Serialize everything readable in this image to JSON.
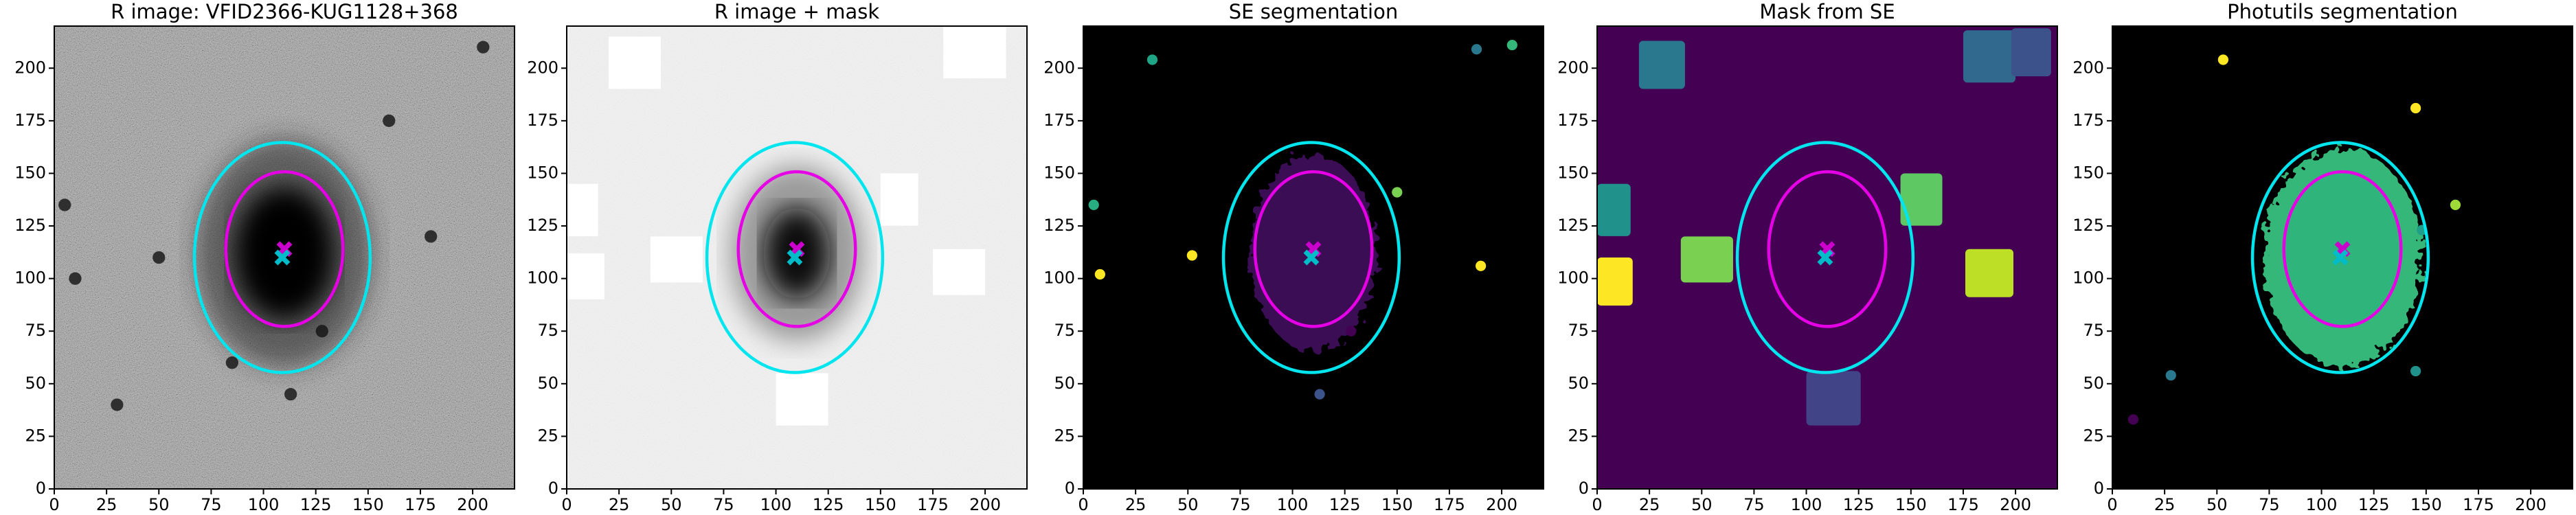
{
  "chart_data": [
    {
      "type": "image",
      "title": "R image: VFID2366-KUG1128+368",
      "background": "#8a8a8a",
      "xlim": [
        0,
        220
      ],
      "ylim": [
        0,
        220
      ],
      "xticks": [
        0,
        25,
        50,
        75,
        100,
        125,
        150,
        175,
        200
      ],
      "yticks": [
        0,
        25,
        50,
        75,
        100,
        125,
        150,
        175,
        200
      ],
      "ellipses": [
        {
          "color": "#00e5ee",
          "cx": 109,
          "cy": 110,
          "rx": 42,
          "ry": 55
        },
        {
          "color": "#e600e6",
          "cx": 110,
          "cy": 114,
          "rx": 28,
          "ry": 37
        }
      ],
      "markers": [
        {
          "color": "#cc00cc",
          "x": 110,
          "y": 114
        },
        {
          "color": "#00bcc8",
          "x": 109,
          "y": 110
        }
      ]
    },
    {
      "type": "image",
      "title": "R image + mask",
      "background": "#f2f2f2",
      "xlim": [
        0,
        220
      ],
      "ylim": [
        0,
        220
      ],
      "xticks": [
        0,
        25,
        50,
        75,
        100,
        125,
        150,
        175,
        200
      ],
      "yticks": [
        0,
        25,
        50,
        75,
        100,
        125,
        150,
        175,
        200
      ],
      "ellipses": [
        {
          "color": "#00e5ee",
          "cx": 109,
          "cy": 110,
          "rx": 42,
          "ry": 55
        },
        {
          "color": "#e600e6",
          "cx": 110,
          "cy": 114,
          "rx": 28,
          "ry": 37
        }
      ],
      "markers": [
        {
          "color": "#cc00cc",
          "x": 110,
          "y": 114
        },
        {
          "color": "#00bcc8",
          "x": 109,
          "y": 110
        }
      ]
    },
    {
      "type": "image",
      "title": "SE segmentation",
      "background": "#000000",
      "xlim": [
        0,
        220
      ],
      "ylim": [
        0,
        220
      ],
      "xticks": [
        0,
        25,
        50,
        75,
        100,
        125,
        150,
        175,
        200
      ],
      "yticks": [
        0,
        25,
        50,
        75,
        100,
        125,
        150,
        175,
        200
      ],
      "ellipses": [
        {
          "color": "#00e5ee",
          "cx": 109,
          "cy": 110,
          "rx": 42,
          "ry": 55
        },
        {
          "color": "#e600e6",
          "cx": 110,
          "cy": 114,
          "rx": 28,
          "ry": 37
        }
      ],
      "markers": [
        {
          "color": "#cc00cc",
          "x": 110,
          "y": 114
        },
        {
          "color": "#00bcc8",
          "x": 109,
          "y": 110
        }
      ]
    },
    {
      "type": "image",
      "title": "Mask from SE",
      "background": "#440154",
      "xlim": [
        0,
        220
      ],
      "ylim": [
        0,
        220
      ],
      "xticks": [
        0,
        25,
        50,
        75,
        100,
        125,
        150,
        175,
        200
      ],
      "yticks": [
        0,
        25,
        50,
        75,
        100,
        125,
        150,
        175,
        200
      ],
      "ellipses": [
        {
          "color": "#00e5ee",
          "cx": 109,
          "cy": 110,
          "rx": 42,
          "ry": 55
        },
        {
          "color": "#e600e6",
          "cx": 110,
          "cy": 114,
          "rx": 28,
          "ry": 37
        }
      ],
      "markers": [
        {
          "color": "#cc00cc",
          "x": 110,
          "y": 114
        },
        {
          "color": "#00bcc8",
          "x": 109,
          "y": 110
        }
      ]
    },
    {
      "type": "image",
      "title": "Photutils segmentation",
      "background": "#000000",
      "xlim": [
        0,
        220
      ],
      "ylim": [
        0,
        220
      ],
      "xticks": [
        0,
        25,
        50,
        75,
        100,
        125,
        150,
        175,
        200
      ],
      "yticks": [
        0,
        25,
        50,
        75,
        100,
        125,
        150,
        175,
        200
      ],
      "ellipses": [
        {
          "color": "#00e5ee",
          "cx": 109,
          "cy": 110,
          "rx": 42,
          "ry": 55
        },
        {
          "color": "#e600e6",
          "cx": 110,
          "cy": 114,
          "rx": 28,
          "ry": 37
        }
      ],
      "markers": [
        {
          "color": "#cc00cc",
          "x": 110,
          "y": 114
        },
        {
          "color": "#00bcc8",
          "x": 109,
          "y": 110
        }
      ]
    }
  ]
}
